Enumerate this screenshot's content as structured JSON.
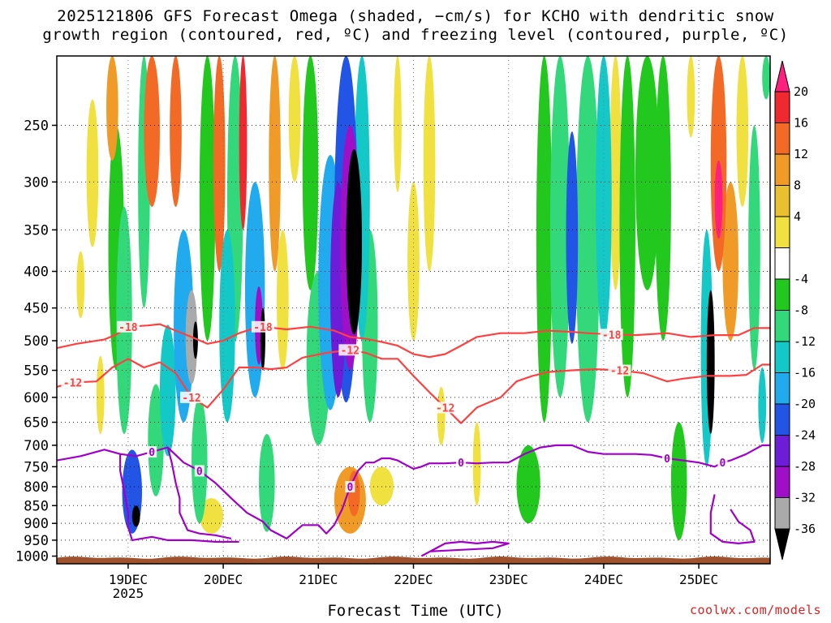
{
  "title_line1": "2025121806 GFS Forecast Omega (shaded, −cm/s) for KCHO with dendritic snow",
  "title_line2": "growth region (contoured, red, ºC) and freezing level (contoured, purple, ºC)",
  "credit": "coolwx.com/models",
  "chart_data": {
    "type": "heatmap",
    "title": "2025121806 GFS Forecast Omega (shaded, −cm/s) for KCHO with dendritic snow growth region (contoured, red, ºC) and freezing level (contoured, purple, ºC)",
    "xlabel": "Forecast Time (UTC)",
    "ylabel": "",
    "x_ticks": [
      {
        "label": "19DEC",
        "sublabel": "2025",
        "hours": 24
      },
      {
        "label": "20DEC",
        "hours": 48
      },
      {
        "label": "21DEC",
        "hours": 72
      },
      {
        "label": "22DEC",
        "hours": 96
      },
      {
        "label": "23DEC",
        "hours": 120
      },
      {
        "label": "24DEC",
        "hours": 144
      },
      {
        "label": "25DEC",
        "hours": 168
      }
    ],
    "x_range_hours": [
      6,
      186
    ],
    "y_ticks": [
      250,
      300,
      350,
      400,
      450,
      500,
      550,
      600,
      650,
      700,
      750,
      800,
      850,
      900,
      950,
      1000
    ],
    "y_range_hpa": [
      200,
      1025
    ],
    "y_scale": "log",
    "grid": true,
    "colorbar": {
      "labels": [
        "20",
        "16",
        "12",
        "8",
        "4",
        "-4",
        "-8",
        "-12",
        "-16",
        "-20",
        "-24",
        "-28",
        "-32",
        "-36"
      ],
      "colors": [
        "#ff1f7e",
        "#f02830",
        "#f26a25",
        "#f09a28",
        "#e8c030",
        "#f0e040",
        "#ffffff",
        "#22c81e",
        "#33d87a",
        "#14c8c8",
        "#22aaee",
        "#2255e6",
        "#6d1cd8",
        "#a00fc8",
        "#aaaaaa",
        "#000000"
      ]
    },
    "omega_cells": [
      {
        "t": 12,
        "p": 420,
        "w": 2,
        "h": 90,
        "v": 4
      },
      {
        "t": 15,
        "p": 300,
        "w": 3,
        "h": 140,
        "v": 6
      },
      {
        "t": 17,
        "p": 600,
        "w": 2,
        "h": 150,
        "v": 4
      },
      {
        "t": 20,
        "p": 220,
        "w": 3,
        "h": 120,
        "v": 8
      },
      {
        "t": 21,
        "p": 400,
        "w": 4,
        "h": 300,
        "v": -6
      },
      {
        "t": 23,
        "p": 500,
        "w": 4,
        "h": 350,
        "v": -10
      },
      {
        "t": 25,
        "p": 820,
        "w": 5,
        "h": 220,
        "v": -20
      },
      {
        "t": 26,
        "p": 880,
        "w": 2,
        "h": 60,
        "v": -36
      },
      {
        "t": 28,
        "p": 300,
        "w": 3,
        "h": 300,
        "v": -8
      },
      {
        "t": 30,
        "p": 250,
        "w": 4,
        "h": 150,
        "v": 12
      },
      {
        "t": 31,
        "p": 700,
        "w": 4,
        "h": 250,
        "v": -8
      },
      {
        "t": 34,
        "p": 600,
        "w": 4,
        "h": 250,
        "v": -14
      },
      {
        "t": 36,
        "p": 250,
        "w": 3,
        "h": 150,
        "v": 14
      },
      {
        "t": 38,
        "p": 500,
        "w": 5,
        "h": 300,
        "v": -18
      },
      {
        "t": 40,
        "p": 500,
        "w": 3,
        "h": 150,
        "v": -32
      },
      {
        "t": 41,
        "p": 500,
        "w": 1,
        "h": 60,
        "v": -36
      },
      {
        "t": 42,
        "p": 750,
        "w": 4,
        "h": 300,
        "v": -10
      },
      {
        "t": 44,
        "p": 350,
        "w": 4,
        "h": 300,
        "v": -6
      },
      {
        "t": 45,
        "p": 880,
        "w": 6,
        "h": 100,
        "v": 6
      },
      {
        "t": 47,
        "p": 250,
        "w": 3,
        "h": 300,
        "v": 14
      },
      {
        "t": 49,
        "p": 500,
        "w": 4,
        "h": 300,
        "v": -14
      },
      {
        "t": 51,
        "p": 350,
        "w": 4,
        "h": 300,
        "v": -8
      },
      {
        "t": 53,
        "p": 250,
        "w": 2,
        "h": 200,
        "v": 18
      },
      {
        "t": 56,
        "p": 450,
        "w": 5,
        "h": 300,
        "v": -16
      },
      {
        "t": 57,
        "p": 480,
        "w": 2,
        "h": 120,
        "v": -28
      },
      {
        "t": 58,
        "p": 500,
        "w": 1,
        "h": 100,
        "v": -36
      },
      {
        "t": 59,
        "p": 800,
        "w": 4,
        "h": 250,
        "v": -10
      },
      {
        "t": 61,
        "p": 300,
        "w": 3,
        "h": 200,
        "v": 10
      },
      {
        "t": 63,
        "p": 450,
        "w": 3,
        "h": 200,
        "v": 6
      },
      {
        "t": 66,
        "p": 250,
        "w": 3,
        "h": 100,
        "v": 4
      },
      {
        "t": 70,
        "p": 300,
        "w": 4,
        "h": 250,
        "v": -6
      },
      {
        "t": 72,
        "p": 550,
        "w": 6,
        "h": 300,
        "v": -10
      },
      {
        "t": 75,
        "p": 450,
        "w": 6,
        "h": 350,
        "v": -16
      },
      {
        "t": 77,
        "p": 450,
        "w": 4,
        "h": 300,
        "v": -24
      },
      {
        "t": 79,
        "p": 400,
        "w": 6,
        "h": 420,
        "v": -20
      },
      {
        "t": 80,
        "p": 400,
        "w": 5,
        "h": 300,
        "v": -30
      },
      {
        "t": 81,
        "p": 380,
        "w": 4,
        "h": 220,
        "v": -36
      },
      {
        "t": 83,
        "p": 350,
        "w": 4,
        "h": 300,
        "v": -14
      },
      {
        "t": 85,
        "p": 500,
        "w": 4,
        "h": 300,
        "v": -8
      },
      {
        "t": 80,
        "p": 840,
        "w": 8,
        "h": 180,
        "v": 8
      },
      {
        "t": 81,
        "p": 820,
        "w": 3,
        "h": 120,
        "v": 14
      },
      {
        "t": 88,
        "p": 800,
        "w": 6,
        "h": 100,
        "v": 6
      },
      {
        "t": 92,
        "p": 250,
        "w": 2,
        "h": 120,
        "v": 4
      },
      {
        "t": 96,
        "p": 400,
        "w": 3,
        "h": 200,
        "v": 6
      },
      {
        "t": 100,
        "p": 300,
        "w": 3,
        "h": 200,
        "v": 4
      },
      {
        "t": 103,
        "p": 640,
        "w": 2,
        "h": 120,
        "v": 4
      },
      {
        "t": 112,
        "p": 750,
        "w": 2,
        "h": 200,
        "v": 4
      },
      {
        "t": 125,
        "p": 800,
        "w": 6,
        "h": 200,
        "v": -6
      },
      {
        "t": 129,
        "p": 400,
        "w": 4,
        "h": 500,
        "v": -6
      },
      {
        "t": 133,
        "p": 400,
        "w": 5,
        "h": 400,
        "v": -10
      },
      {
        "t": 136,
        "p": 380,
        "w": 3,
        "h": 250,
        "v": -22
      },
      {
        "t": 140,
        "p": 400,
        "w": 6,
        "h": 500,
        "v": -8
      },
      {
        "t": 144,
        "p": 350,
        "w": 4,
        "h": 300,
        "v": -14
      },
      {
        "t": 147,
        "p": 300,
        "w": 3,
        "h": 250,
        "v": 6
      },
      {
        "t": 150,
        "p": 400,
        "w": 4,
        "h": 400,
        "v": -6
      },
      {
        "t": 155,
        "p": 300,
        "w": 6,
        "h": 250,
        "v": -6
      },
      {
        "t": 159,
        "p": 350,
        "w": 4,
        "h": 300,
        "v": -4
      },
      {
        "t": 163,
        "p": 800,
        "w": 4,
        "h": 300,
        "v": -6
      },
      {
        "t": 166,
        "p": 220,
        "w": 2,
        "h": 80,
        "v": 6
      },
      {
        "t": 170,
        "p": 550,
        "w": 3,
        "h": 400,
        "v": -14
      },
      {
        "t": 171,
        "p": 550,
        "w": 2,
        "h": 250,
        "v": -36
      },
      {
        "t": 173,
        "p": 300,
        "w": 4,
        "h": 200,
        "v": 12
      },
      {
        "t": 173,
        "p": 320,
        "w": 2,
        "h": 80,
        "v": 20
      },
      {
        "t": 176,
        "p": 400,
        "w": 4,
        "h": 200,
        "v": 8
      },
      {
        "t": 179,
        "p": 250,
        "w": 3,
        "h": 150,
        "v": 4
      },
      {
        "t": 182,
        "p": 400,
        "w": 3,
        "h": 300,
        "v": -8
      },
      {
        "t": 184,
        "p": 620,
        "w": 2,
        "h": 150,
        "v": -14
      },
      {
        "t": 185,
        "p": 200,
        "w": 2,
        "h": 60,
        "v": -8
      }
    ],
    "contours": [
      {
        "label": "-18",
        "color": "#ff4040",
        "labels_at_hours": [
          24,
          58,
          147
        ],
        "points": [
          [
            6,
            512
          ],
          [
            11,
            505
          ],
          [
            18,
            498
          ],
          [
            21,
            490
          ],
          [
            24,
            478
          ],
          [
            29,
            476
          ],
          [
            32,
            474
          ],
          [
            36,
            484
          ],
          [
            40,
            494
          ],
          [
            44,
            505
          ],
          [
            48,
            500
          ],
          [
            52,
            488
          ],
          [
            56,
            480
          ],
          [
            58,
            478
          ],
          [
            64,
            482
          ],
          [
            70,
            478
          ],
          [
            76,
            484
          ],
          [
            80,
            494
          ],
          [
            84,
            497
          ],
          [
            88,
            502
          ],
          [
            92,
            508
          ],
          [
            96,
            522
          ],
          [
            100,
            527
          ],
          [
            104,
            522
          ],
          [
            108,
            508
          ],
          [
            112,
            494
          ],
          [
            118,
            488
          ],
          [
            124,
            488
          ],
          [
            130,
            484
          ],
          [
            136,
            486
          ],
          [
            140,
            488
          ],
          [
            146,
            490
          ],
          [
            152,
            491
          ],
          [
            160,
            488
          ],
          [
            166,
            494
          ],
          [
            172,
            491
          ],
          [
            178,
            491
          ],
          [
            182,
            480
          ],
          [
            186,
            480
          ]
        ]
      },
      {
        "label": "-12",
        "color": "#ff4040",
        "labels_at_hours": [
          11,
          42,
          80,
          104,
          150
        ],
        "points": [
          [
            6,
            580
          ],
          [
            10,
            572
          ],
          [
            16,
            570
          ],
          [
            20,
            545
          ],
          [
            24,
            530
          ],
          [
            28,
            545
          ],
          [
            32,
            536
          ],
          [
            36,
            555
          ],
          [
            40,
            600
          ],
          [
            44,
            620
          ],
          [
            48,
            585
          ],
          [
            52,
            545
          ],
          [
            56,
            545
          ],
          [
            60,
            548
          ],
          [
            64,
            545
          ],
          [
            68,
            528
          ],
          [
            74,
            520
          ],
          [
            80,
            515
          ],
          [
            84,
            520
          ],
          [
            88,
            530
          ],
          [
            92,
            530
          ],
          [
            96,
            560
          ],
          [
            100,
            590
          ],
          [
            104,
            620
          ],
          [
            108,
            652
          ],
          [
            112,
            620
          ],
          [
            118,
            600
          ],
          [
            122,
            570
          ],
          [
            126,
            560
          ],
          [
            130,
            553
          ],
          [
            136,
            550
          ],
          [
            142,
            548
          ],
          [
            148,
            550
          ],
          [
            154,
            555
          ],
          [
            160,
            570
          ],
          [
            164,
            565
          ],
          [
            170,
            560
          ],
          [
            176,
            560
          ],
          [
            180,
            558
          ],
          [
            184,
            540
          ],
          [
            186,
            540
          ]
        ]
      },
      {
        "label": "0",
        "color": "#a000c8",
        "labels_at_hours": [
          29,
          42,
          80,
          109,
          160,
          174
        ],
        "points": [
          [
            6,
            735
          ],
          [
            12,
            725
          ],
          [
            18,
            710
          ],
          [
            22,
            720
          ],
          [
            26,
            725
          ],
          [
            30,
            715
          ],
          [
            34,
            705
          ],
          [
            38,
            740
          ],
          [
            42,
            760
          ],
          [
            46,
            790
          ],
          [
            50,
            830
          ],
          [
            54,
            870
          ],
          [
            58,
            895
          ],
          [
            60,
            920
          ],
          [
            64,
            945
          ],
          [
            68,
            905
          ],
          [
            72,
            905
          ],
          [
            74,
            930
          ],
          [
            76,
            905
          ],
          [
            78,
            860
          ],
          [
            80,
            800
          ],
          [
            82,
            760
          ],
          [
            84,
            740
          ],
          [
            86,
            740
          ],
          [
            88,
            730
          ],
          [
            90,
            730
          ],
          [
            92,
            735
          ],
          [
            94,
            745
          ],
          [
            96,
            755
          ],
          [
            98,
            750
          ],
          [
            100,
            742
          ],
          [
            104,
            742
          ],
          [
            108,
            740
          ],
          [
            112,
            742
          ],
          [
            116,
            740
          ],
          [
            120,
            740
          ],
          [
            124,
            720
          ],
          [
            128,
            705
          ],
          [
            132,
            700
          ],
          [
            136,
            700
          ],
          [
            140,
            715
          ],
          [
            144,
            720
          ],
          [
            148,
            720
          ],
          [
            152,
            720
          ],
          [
            156,
            722
          ],
          [
            160,
            730
          ],
          [
            164,
            735
          ],
          [
            168,
            740
          ],
          [
            172,
            750
          ],
          [
            174,
            740
          ],
          [
            176,
            735
          ],
          [
            180,
            720
          ],
          [
            184,
            700
          ],
          [
            186,
            700
          ]
        ]
      },
      {
        "label": "0",
        "color": "#a000c8",
        "labels_at_hours": [],
        "points": [
          [
            22,
            720
          ],
          [
            22,
            760
          ],
          [
            23,
            810
          ],
          [
            24,
            870
          ],
          [
            24,
            910
          ],
          [
            25,
            950
          ],
          [
            30,
            940
          ],
          [
            34,
            950
          ],
          [
            40,
            950
          ],
          [
            46,
            955
          ],
          [
            52,
            955
          ]
        ]
      },
      {
        "label": "0",
        "color": "#a000c8",
        "labels_at_hours": [],
        "points": [
          [
            34,
            705
          ],
          [
            35,
            740
          ],
          [
            36,
            790
          ],
          [
            37,
            830
          ],
          [
            37,
            870
          ],
          [
            39,
            920
          ],
          [
            42,
            930
          ],
          [
            46,
            935
          ],
          [
            50,
            945
          ]
        ]
      },
      {
        "label": "0",
        "color": "#a000c8",
        "labels_at_hours": [],
        "points": [
          [
            98,
            1000
          ],
          [
            104,
            960
          ],
          [
            108,
            955
          ],
          [
            112,
            960
          ],
          [
            116,
            955
          ],
          [
            120,
            960
          ],
          [
            116,
            975
          ],
          [
            108,
            980
          ],
          [
            100,
            985
          ]
        ]
      },
      {
        "label": "0",
        "color": "#a000c8",
        "labels_at_hours": [],
        "points": [
          [
            172,
            820
          ],
          [
            171,
            870
          ],
          [
            171,
            930
          ],
          [
            174,
            955
          ],
          [
            178,
            960
          ],
          [
            182,
            955
          ],
          [
            181,
            920
          ],
          [
            178,
            895
          ],
          [
            176,
            860
          ]
        ]
      }
    ]
  }
}
